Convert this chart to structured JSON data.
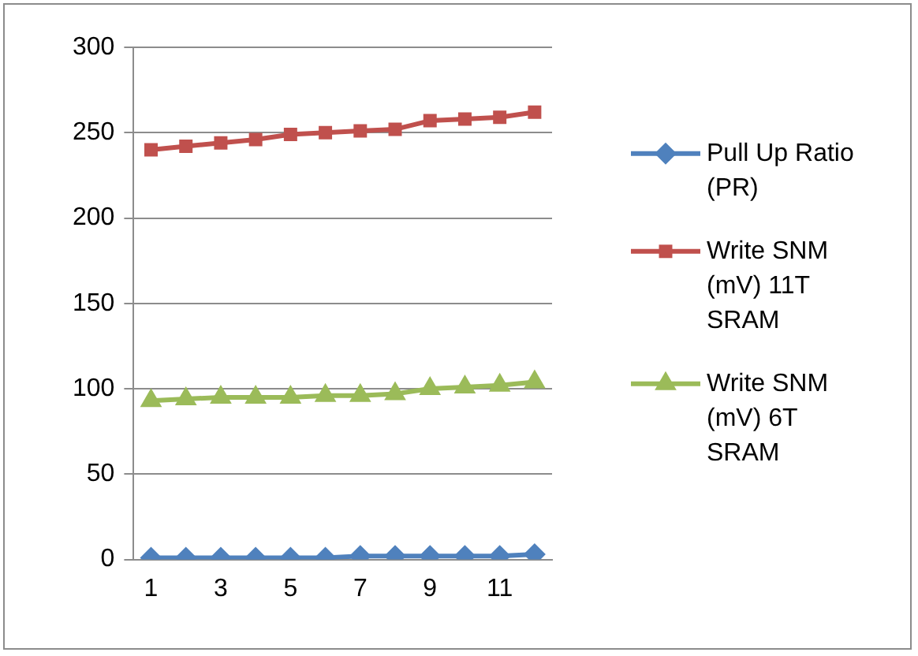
{
  "chart_data": {
    "type": "line",
    "categories": [
      "1",
      null,
      "3",
      null,
      "5",
      null,
      "7",
      null,
      "9",
      null,
      "11",
      null
    ],
    "series": [
      {
        "name": "Pull Up Ratio (PR)",
        "color": "#4f81bd",
        "marker": "diamond",
        "values": [
          1,
          1,
          1,
          1,
          1,
          1,
          2,
          2,
          2,
          2,
          2,
          3
        ]
      },
      {
        "name": "Write SNM (mV) 11T SRAM",
        "color": "#c0504d",
        "marker": "square",
        "values": [
          240,
          242,
          244,
          246,
          249,
          250,
          251,
          252,
          257,
          258,
          259,
          262
        ]
      },
      {
        "name": "Write SNM (mV) 6T SRAM",
        "color": "#9bbb59",
        "marker": "triangle",
        "values": [
          93,
          94,
          95,
          95,
          95,
          96,
          96,
          97,
          100,
          101,
          102,
          104
        ]
      }
    ],
    "ylim": [
      0,
      300
    ],
    "yticks": [
      0,
      50,
      100,
      150,
      200,
      250,
      300
    ],
    "grid": "y",
    "legend": "right"
  }
}
